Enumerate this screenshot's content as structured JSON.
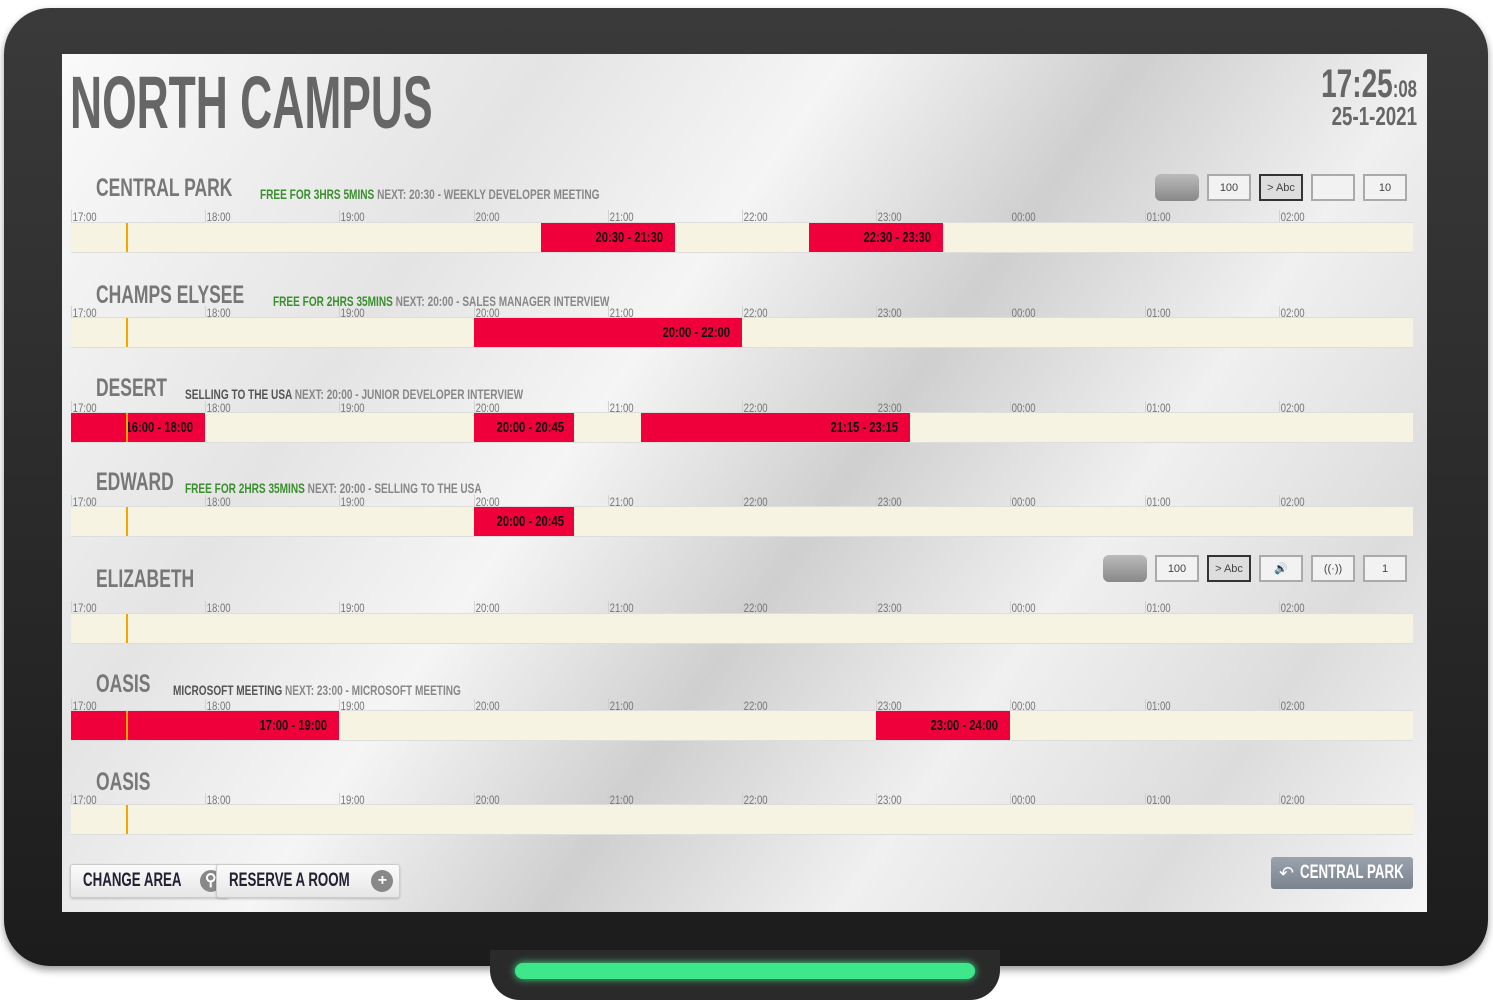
{
  "header": {
    "title": "NORTH CAMPUS",
    "time_hm": "17:25",
    "time_s": ":08",
    "date": "25-1-2021"
  },
  "timeline": {
    "ticks": [
      "17:00",
      "18:00",
      "19:00",
      "20:00",
      "21:00",
      "22:00",
      "23:00",
      "00:00",
      "01:00",
      "02:00"
    ],
    "start_hour": 17,
    "hours": 10,
    "now": "17:25"
  },
  "colors": {
    "booked": "#f0003a",
    "free_text": "#3a8f2e",
    "now_marker": "#f0a800",
    "bar": "#f7f3e3"
  },
  "rooms": [
    {
      "name": "CENTRAL PARK",
      "status_free": "FREE FOR 3HRS 5MINS",
      "status": "",
      "next": "NEXT: 20:30 - WEEKLY DEVELOPER MEETING",
      "bookings": [
        {
          "label": "20:30 - 21:30",
          "start": "20:30",
          "end": "21:30"
        },
        {
          "label": "22:30 - 23:30",
          "start": "22:30",
          "end": "23:30"
        }
      ],
      "icons": [
        {
          "name": "projector-icon",
          "text": ""
        },
        {
          "name": "whiteboard-icon",
          "text": "100"
        },
        {
          "name": "display-icon",
          "text": "> Abc"
        },
        {
          "name": "video-camera-icon",
          "text": ""
        },
        {
          "name": "capacity-icon",
          "text": "10"
        }
      ]
    },
    {
      "name": "CHAMPS ELYSEE",
      "status_free": "FREE FOR 2HRS 35MINS",
      "status": "",
      "next": "NEXT: 20:00 - SALES MANAGER INTERVIEW",
      "bookings": [
        {
          "label": "20:00 - 22:00",
          "start": "20:00",
          "end": "22:00"
        }
      ],
      "icons": []
    },
    {
      "name": "DESERT",
      "status_free": "",
      "status": "SELLING TO THE USA",
      "next": "NEXT: 20:00 - JUNIOR DEVELOPER INTERVIEW",
      "bookings": [
        {
          "label": "16:00 - 18:00",
          "start": "17:00",
          "end": "18:00"
        },
        {
          "label": "20:00 - 20:45",
          "start": "20:00",
          "end": "20:45"
        },
        {
          "label": "21:15 - 23:15",
          "start": "21:15",
          "end": "23:15"
        }
      ],
      "icons": []
    },
    {
      "name": "EDWARD",
      "status_free": "FREE FOR 2HRS 35MINS",
      "status": "",
      "next": "NEXT: 20:00 - SELLING TO THE USA",
      "bookings": [
        {
          "label": "20:00 - 20:45",
          "start": "20:00",
          "end": "20:45"
        }
      ],
      "icons": []
    },
    {
      "name": "ELIZABETH",
      "status_free": "",
      "status": "",
      "next": "",
      "bookings": [],
      "icons": [
        {
          "name": "projector-icon",
          "text": ""
        },
        {
          "name": "whiteboard-icon",
          "text": "100"
        },
        {
          "name": "display-icon",
          "text": "> Abc"
        },
        {
          "name": "speaker-icon",
          "text": "🔊"
        },
        {
          "name": "wifi-icon",
          "text": "((·))"
        },
        {
          "name": "capacity-icon",
          "text": "1"
        }
      ]
    },
    {
      "name": "OASIS",
      "status_free": "",
      "status": "MICROSOFT MEETING",
      "next": "NEXT: 23:00 - MICROSOFT MEETING",
      "bookings": [
        {
          "label": "17:00 - 19:00",
          "start": "17:00",
          "end": "19:00"
        },
        {
          "label": "23:00 - 24:00",
          "start": "23:00",
          "end": "24:00"
        }
      ],
      "icons": []
    },
    {
      "name": "OASIS",
      "status_free": "",
      "status": "",
      "next": "",
      "bookings": [],
      "icons": []
    }
  ],
  "footer": {
    "change_area": "CHANGE AREA",
    "reserve_room": "RESERVE A ROOM",
    "back": "CENTRAL PARK"
  }
}
